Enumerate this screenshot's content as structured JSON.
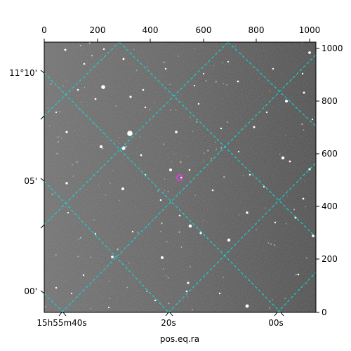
{
  "figure": {
    "xlabel": "pos.eq.ra",
    "top_ticks": [
      "0",
      "200",
      "400",
      "600",
      "800",
      "1000"
    ],
    "right_ticks": [
      "0",
      "200",
      "400",
      "600",
      "800",
      "1000"
    ],
    "bottom_ticks": [
      "15h55m40s",
      "20s",
      "00s"
    ],
    "left_ticks": [
      "11°10'",
      "05'",
      "00'"
    ],
    "grid_color": "#00e5e5",
    "marker_color": "#e040e0",
    "image_style": "grayscale star field"
  }
}
